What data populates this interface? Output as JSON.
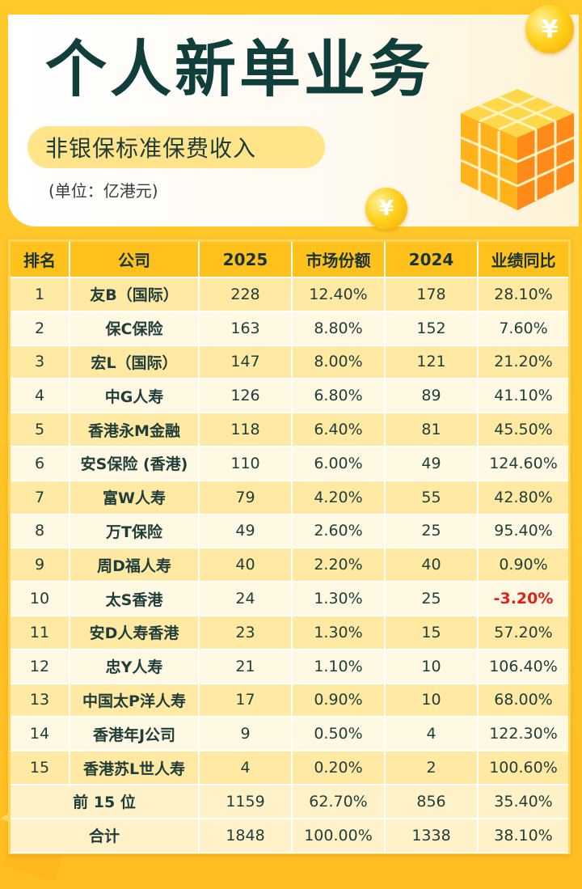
{
  "header": {
    "title": "个人新单业务",
    "subtitle": "非银保标准保费收入",
    "unit_note": "(单位：亿港元)",
    "coin_symbol": "¥"
  },
  "table": {
    "columns": [
      "排名",
      "公司",
      "2025",
      "市场份额",
      "2024",
      "业绩同比"
    ],
    "rows": [
      {
        "rank": "1",
        "company": "友B（国际）",
        "y2025": "228",
        "share": "12.40%",
        "y2024": "178",
        "yoy": "28.10%"
      },
      {
        "rank": "2",
        "company": "保C保险",
        "y2025": "163",
        "share": "8.80%",
        "y2024": "152",
        "yoy": "7.60%"
      },
      {
        "rank": "3",
        "company": "宏L（国际）",
        "y2025": "147",
        "share": "8.00%",
        "y2024": "121",
        "yoy": "21.20%"
      },
      {
        "rank": "4",
        "company": "中G人寿",
        "y2025": "126",
        "share": "6.80%",
        "y2024": "89",
        "yoy": "41.10%"
      },
      {
        "rank": "5",
        "company": "香港永M金融",
        "y2025": "118",
        "share": "6.40%",
        "y2024": "81",
        "yoy": "45.50%"
      },
      {
        "rank": "6",
        "company": "安S保险 (香港)",
        "y2025": "110",
        "share": "6.00%",
        "y2024": "49",
        "yoy": "124.60%"
      },
      {
        "rank": "7",
        "company": "富W人寿",
        "y2025": "79",
        "share": "4.20%",
        "y2024": "55",
        "yoy": "42.80%"
      },
      {
        "rank": "8",
        "company": "万T保险",
        "y2025": "49",
        "share": "2.60%",
        "y2024": "25",
        "yoy": "95.40%"
      },
      {
        "rank": "9",
        "company": "周D福人寿",
        "y2025": "40",
        "share": "2.20%",
        "y2024": "40",
        "yoy": "0.90%"
      },
      {
        "rank": "10",
        "company": "太S香港",
        "y2025": "24",
        "share": "1.30%",
        "y2024": "25",
        "yoy": "-3.20%",
        "negative": true
      },
      {
        "rank": "11",
        "company": "安D人寿香港",
        "y2025": "23",
        "share": "1.30%",
        "y2024": "15",
        "yoy": "57.20%"
      },
      {
        "rank": "12",
        "company": "忠Y人寿",
        "y2025": "21",
        "share": "1.10%",
        "y2024": "10",
        "yoy": "106.40%"
      },
      {
        "rank": "13",
        "company": "中国太P洋人寿",
        "y2025": "17",
        "share": "0.90%",
        "y2024": "10",
        "yoy": "68.00%"
      },
      {
        "rank": "14",
        "company": "香港年J公司",
        "y2025": "9",
        "share": "0.50%",
        "y2024": "4",
        "yoy": "122.30%"
      },
      {
        "rank": "15",
        "company": "香港苏L世人寿",
        "y2025": "4",
        "share": "0.20%",
        "y2024": "2",
        "yoy": "100.60%"
      }
    ],
    "summary": [
      {
        "label": "前 15 位",
        "y2025": "1159",
        "share": "62.70%",
        "y2024": "856",
        "yoy": "35.40%"
      },
      {
        "label": "合计",
        "y2025": "1848",
        "share": "100.00%",
        "y2024": "1338",
        "yoy": "38.10%"
      }
    ]
  },
  "colors": {
    "background": "#ffc62a",
    "title": "#0f3e3b",
    "header_row": "#ffc21c",
    "negative": "#e0201b"
  }
}
